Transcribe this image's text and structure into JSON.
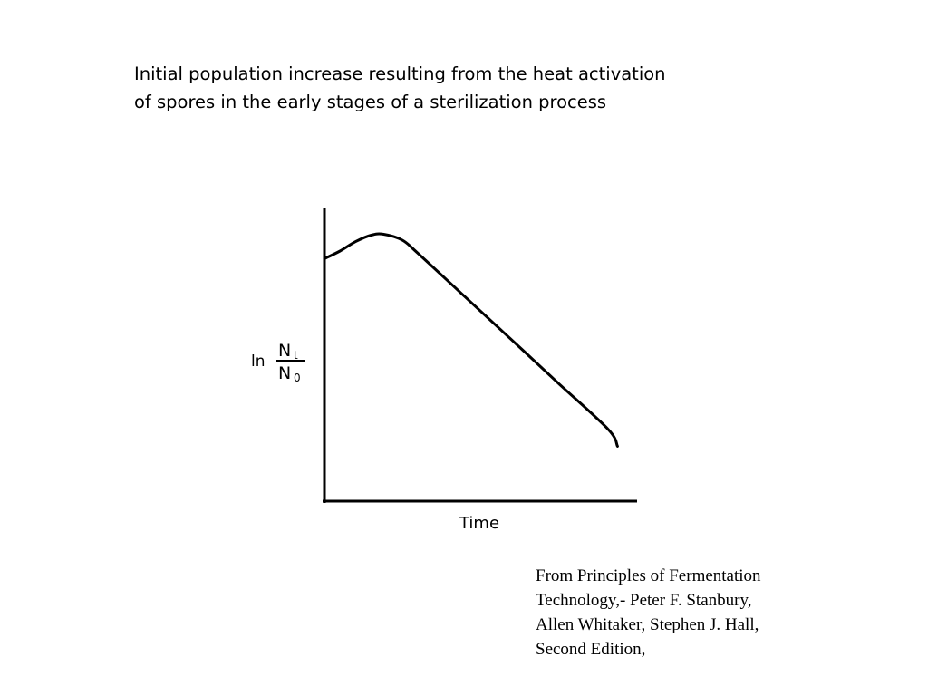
{
  "slide": {
    "title_lines": [
      "Initial population increase resulting from the heat activation",
      "of spores in the early stages of a sterilization process"
    ],
    "citation_lines": [
      "From Principles of Fermentation",
      "Technology,- Peter F. Stanbury,",
      "Allen Whitaker, Stephen J. Hall,",
      "Second Edition,"
    ]
  },
  "chart_data": {
    "type": "line",
    "title": "",
    "xlabel": "Time",
    "ylabel": {
      "prefix": "ln",
      "numerator": "N",
      "numerator_sub": "t",
      "denominator": "N",
      "denominator_sub": "0"
    },
    "grid": false,
    "legend": "none",
    "line_color": "#000000",
    "xlim": [
      0,
      1
    ],
    "ylim": [
      0,
      1
    ],
    "series": [
      {
        "x": [
          0,
          0.05,
          0.1,
          0.15,
          0.19,
          0.25,
          0.3,
          0.45,
          0.6,
          0.75,
          0.91,
          0.94
        ],
        "y": [
          0.826,
          0.852,
          0.884,
          0.906,
          0.909,
          0.889,
          0.844,
          0.697,
          0.55,
          0.402,
          0.245,
          0.187
        ]
      }
    ]
  }
}
